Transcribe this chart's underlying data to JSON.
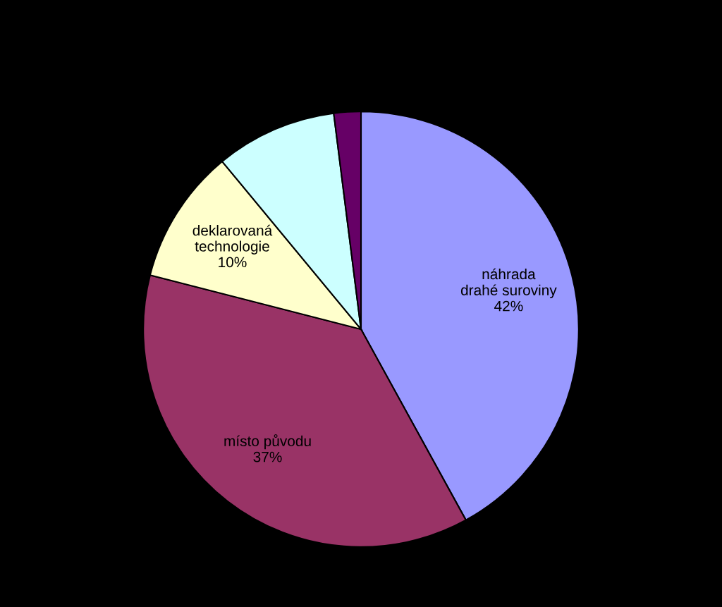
{
  "chart_data": {
    "type": "pie",
    "categories": [
      "náhrada drahé suroviny",
      "místo původu",
      "deklarovaná technologie",
      null,
      null
    ],
    "values": [
      42,
      37,
      10,
      9,
      2
    ],
    "colors": [
      "#9999ff",
      "#993366",
      "#ffffcc",
      "#ccffff",
      "#660066"
    ],
    "value_labels": [
      "42%",
      "37%",
      "10%",
      null,
      null
    ]
  }
}
